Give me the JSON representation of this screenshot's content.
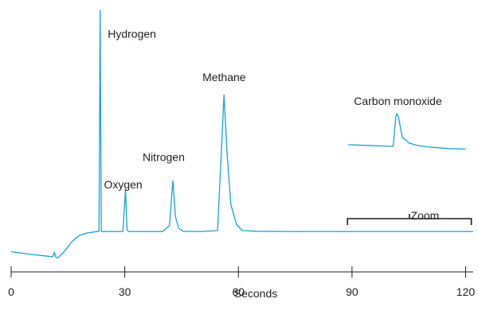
{
  "chart_data": {
    "type": "line",
    "xlabel": "Seconds",
    "x_ticks": [
      0,
      30,
      60,
      90,
      120
    ],
    "xlim": [
      0,
      122
    ],
    "ylim": [
      0,
      100
    ],
    "series": [
      {
        "x": [
          0,
          5,
          9,
          11,
          11.4,
          11.8,
          12.3,
          14,
          16,
          18,
          20,
          22,
          23.2,
          23.5,
          23.8,
          24.1,
          26,
          29.5,
          30.2,
          30.6,
          31,
          31.6,
          33,
          40,
          41.8,
          42.7,
          43.4,
          44.2,
          45.5,
          50,
          54.5,
          55.4,
          56.2,
          57,
          58,
          59.5,
          61,
          65,
          75,
          85,
          95,
          105,
          115,
          122
        ],
        "y": [
          3.0,
          2.0,
          1.3,
          1.0,
          2.8,
          0.8,
          0.5,
          3.0,
          7.0,
          9.5,
          10.5,
          11.0,
          11.2,
          100.0,
          11.2,
          11.1,
          11.1,
          11.1,
          28.0,
          11.8,
          11.1,
          11.1,
          11.1,
          11.1,
          13.5,
          31.5,
          17.0,
          12.5,
          11.2,
          11.1,
          11.5,
          40.0,
          66.0,
          43.0,
          22.0,
          14.0,
          11.5,
          11.2,
          11.1,
          11.1,
          11.1,
          11.1,
          11.1,
          11.1
        ]
      }
    ],
    "annotations": [
      {
        "text": "Hydrogen",
        "x": 25.5,
        "y": 89
      },
      {
        "text": "Oxygen",
        "x": 24.5,
        "y": 28.5
      },
      {
        "text": "Nitrogen",
        "x": 34.7,
        "y": 39.5
      },
      {
        "text": "Methane",
        "x": 50.5,
        "y": 71.5
      },
      {
        "text": "Carbon monoxide",
        "x": 90.5,
        "y": 62
      },
      {
        "text": "Zoom",
        "x": 105.5,
        "y": 16
      }
    ],
    "zoom": {
      "bracket_x": [
        88.8,
        121.5
      ],
      "inset_x": [
        89,
        120
      ],
      "baseline_y": [
        46,
        44.2
      ],
      "peak_y": 58.5
    }
  }
}
